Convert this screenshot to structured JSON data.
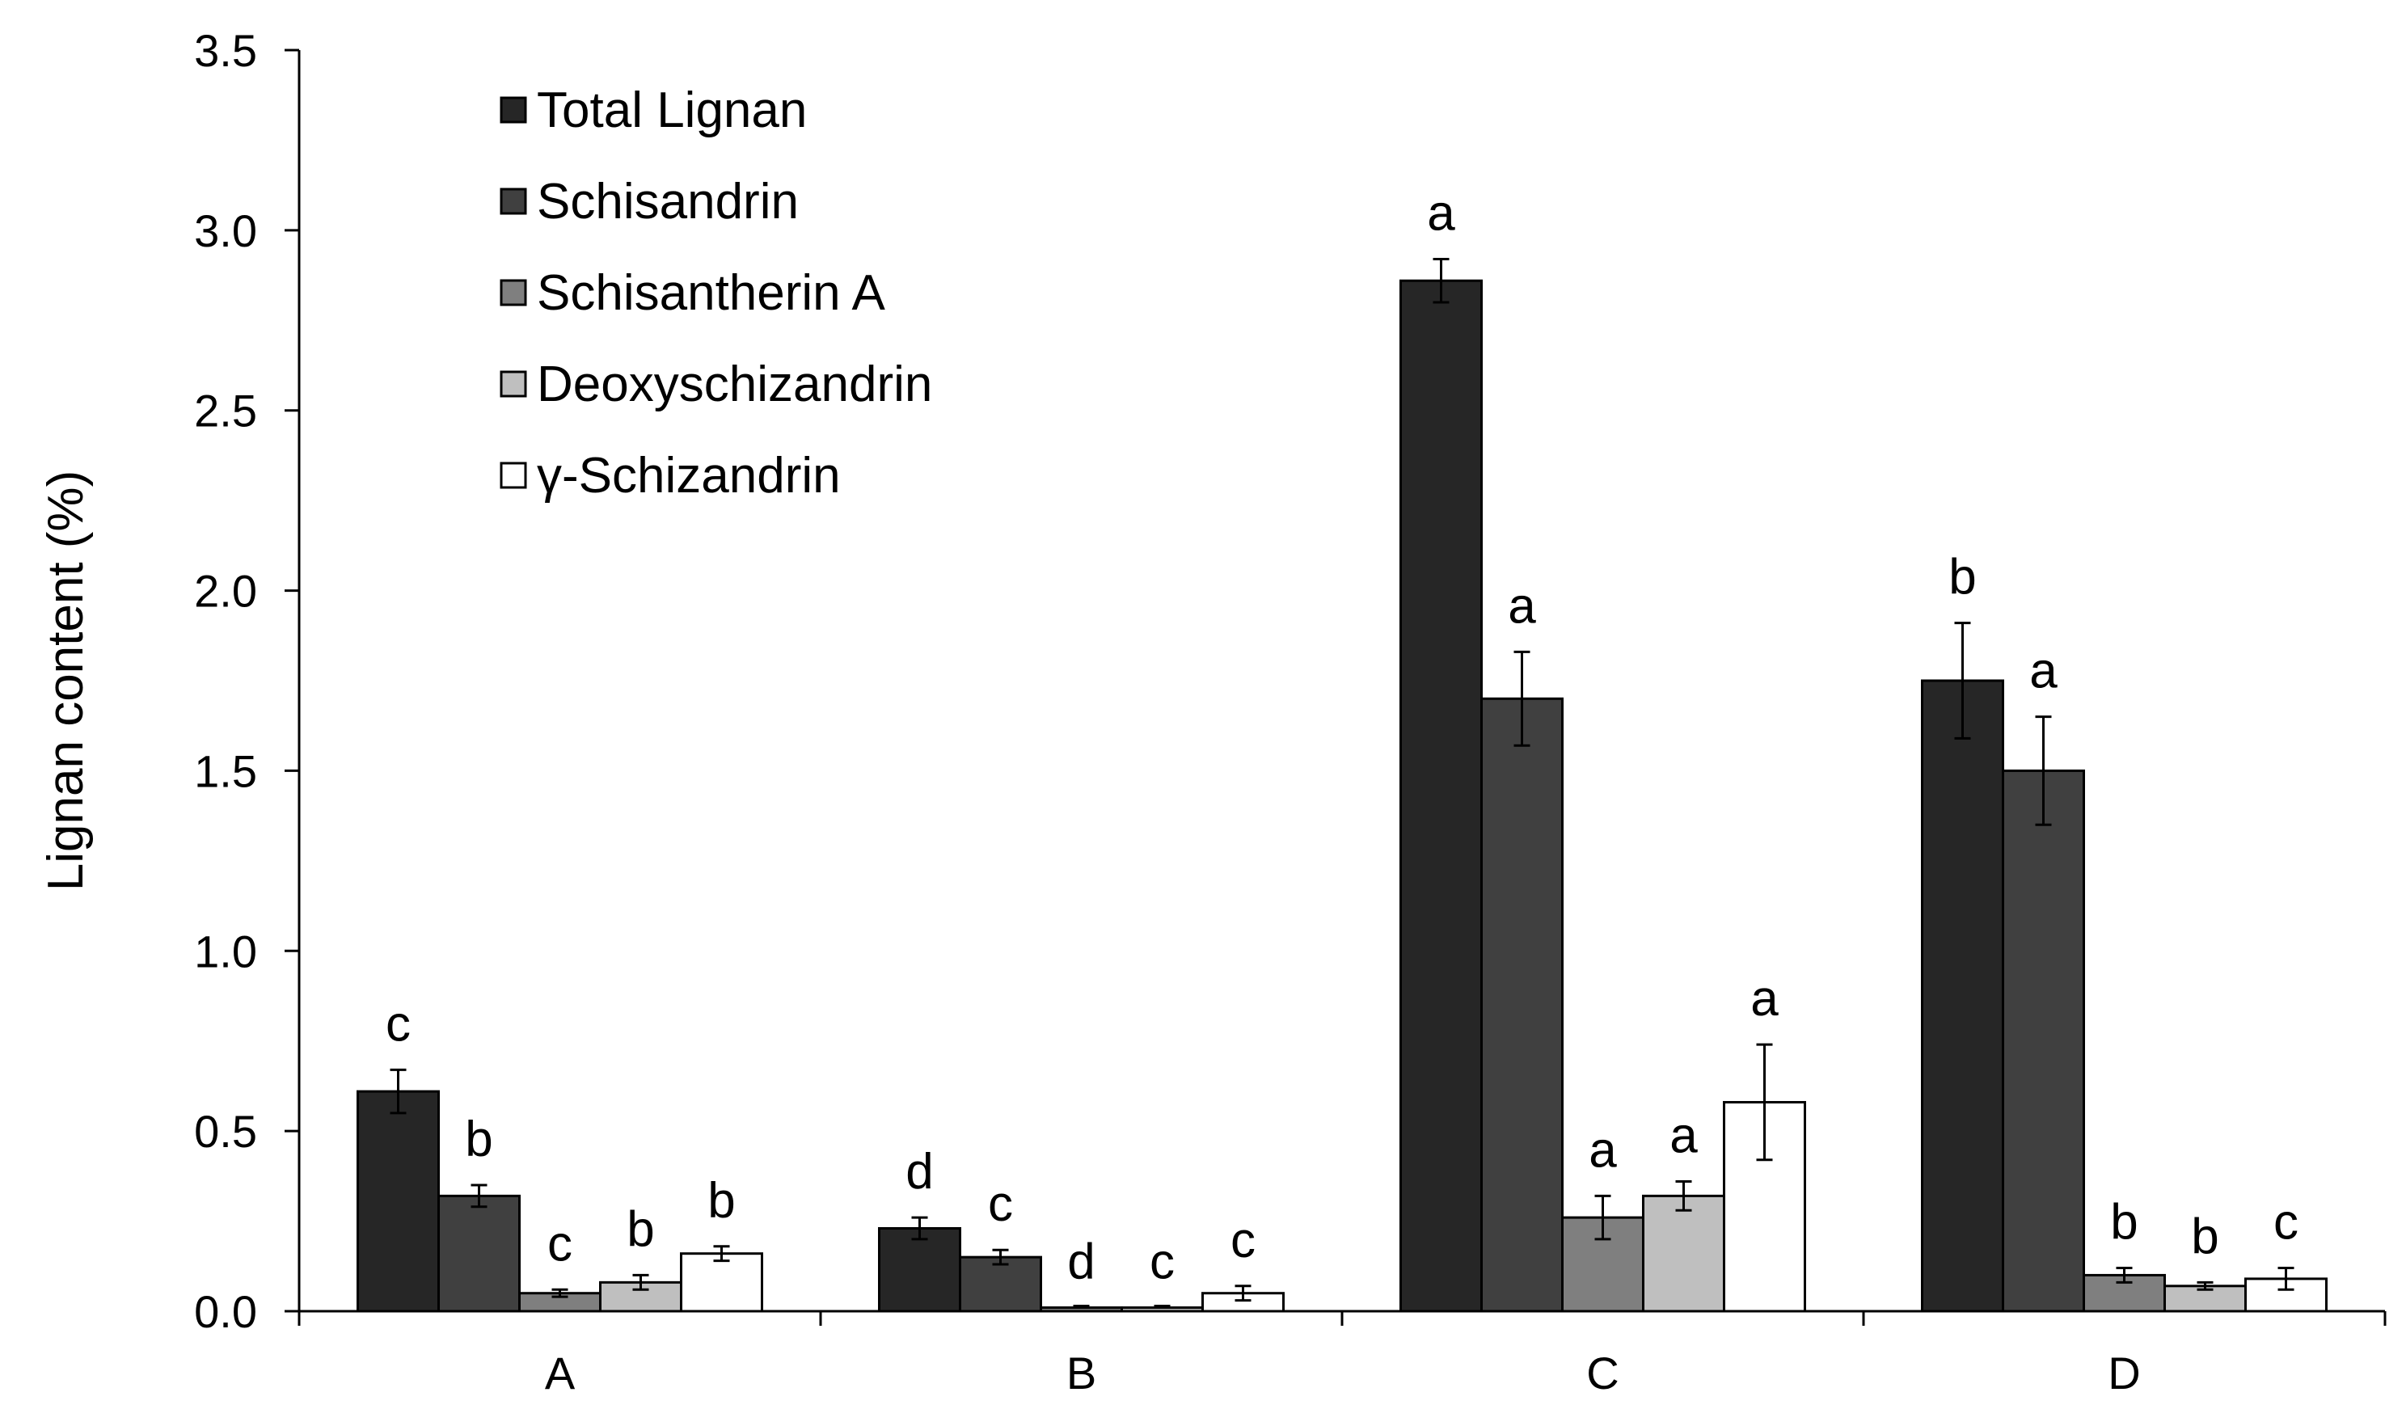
{
  "chart_data": {
    "type": "bar",
    "title": "",
    "xlabel": "",
    "ylabel": "Lignan content (%)",
    "ylim": [
      0,
      3.5
    ],
    "yticks": [
      0.0,
      0.5,
      1.0,
      1.5,
      2.0,
      2.5,
      3.0,
      3.5
    ],
    "ytick_labels": [
      "0.0",
      "0.5",
      "1.0",
      "1.5",
      "2.0",
      "2.5",
      "3.0",
      "3.5"
    ],
    "categories": [
      "A",
      "B",
      "C",
      "D"
    ],
    "legend_position": "top-left",
    "grid": false,
    "series": [
      {
        "name": "Total Lignan",
        "color": "#262626",
        "values": [
          0.61,
          0.23,
          2.86,
          1.75
        ],
        "errors": [
          0.06,
          0.03,
          0.06,
          0.16
        ],
        "significance": [
          "c",
          "d",
          "a",
          "b"
        ]
      },
      {
        "name": "Schisandrin",
        "color": "#404040",
        "values": [
          0.32,
          0.15,
          1.7,
          1.5
        ],
        "errors": [
          0.03,
          0.02,
          0.13,
          0.15
        ],
        "significance": [
          "b",
          "c",
          "a",
          "a"
        ]
      },
      {
        "name": "Schisantherin A",
        "color": "#7f7f7f",
        "values": [
          0.05,
          0.01,
          0.26,
          0.1
        ],
        "errors": [
          0.01,
          0.0,
          0.06,
          0.02
        ],
        "significance": [
          "c",
          "d",
          "a",
          "b"
        ]
      },
      {
        "name": "Deoxyschizandrin",
        "color": "#bfbfbf",
        "values": [
          0.08,
          0.01,
          0.32,
          0.07
        ],
        "errors": [
          0.02,
          0.0,
          0.04,
          0.01
        ],
        "significance": [
          "b",
          "c",
          "a",
          "b"
        ]
      },
      {
        "name": "γ-Schizandrin",
        "color": "#ffffff",
        "values": [
          0.16,
          0.05,
          0.58,
          0.09
        ],
        "errors": [
          0.02,
          0.02,
          0.16,
          0.03
        ],
        "significance": [
          "b",
          "c",
          "a",
          "c"
        ]
      }
    ]
  }
}
